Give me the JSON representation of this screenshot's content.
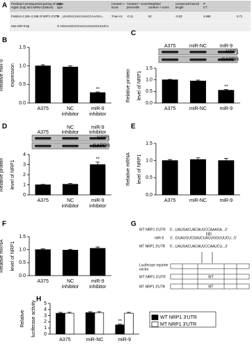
{
  "panel_a": {
    "label": "A",
    "header": [
      [
        "Predicted consequential pairing of target",
        "region (top) and miRNA (bottom)"
      ],
      [
        "Site",
        "type"
      ],
      [
        "Context++",
        "score"
      ],
      [
        "Context++ score",
        "percentile"
      ],
      [
        "Weighted",
        "context++ score"
      ],
      [
        "Conserved branch",
        "length"
      ],
      [
        "P",
        "CT"
      ]
    ],
    "rows": [
      [
        "Position 2,345–2,348 of NRP1 3'UTR",
        "5' ...UAUGACUACAUUCCAAAGA...",
        "7mer-A1",
        "-0.11",
        "92",
        "-0.02",
        "4.688",
        "0.71"
      ],
      [
        "Hsa-miR-9-5p",
        "3' AGUAUGUCGAUCUAUUGGUUUCU"
      ]
    ]
  },
  "chart_data": [
    {
      "panel": "B",
      "type": "bar",
      "ylabel": [
        "Relative miR-9",
        "expression"
      ],
      "categories": [
        [
          "A375"
        ],
        [
          "NC",
          "inhibitor"
        ],
        [
          "miR-9",
          "inhibitor"
        ]
      ],
      "values": [
        1.0,
        0.97,
        0.28
      ],
      "errors": [
        0.03,
        0.03,
        0.02
      ],
      "significance": [
        null,
        null,
        "**"
      ],
      "color": "#000000",
      "ylim": [
        0,
        1.5
      ],
      "yticks": [
        {
          "value": 0,
          "label": "0.0"
        },
        {
          "value": 0.5,
          "label": "0.5"
        },
        {
          "value": 1,
          "label": "1.0"
        },
        {
          "value": 1.5,
          "label": "1.5"
        }
      ]
    },
    {
      "panel": "C",
      "type": "bar",
      "ylabel": [
        "Relative protein",
        "level of NRP1"
      ],
      "categories": [
        [
          "A375"
        ],
        [
          "miR-NC"
        ],
        [
          "miR-9"
        ]
      ],
      "values": [
        1.0,
        0.95,
        0.55
      ],
      "errors": [
        0.02,
        0.04,
        0.03
      ],
      "significance": [
        null,
        null,
        "**"
      ],
      "color": "#000000",
      "blot": {
        "lanes": [
          [
            "A375"
          ],
          [
            "miR-NC"
          ],
          [
            "miR-9"
          ]
        ],
        "rows": [
          "NRP1",
          "GAPDH"
        ]
      },
      "ylim": [
        0,
        1.5
      ],
      "yticks": [
        {
          "value": 0,
          "label": "0.0"
        },
        {
          "value": 0.5,
          "label": "0.5"
        },
        {
          "value": 1,
          "label": "1.0"
        },
        {
          "value": 1.5,
          "label": "1.5"
        }
      ]
    },
    {
      "panel": "D",
      "type": "bar",
      "ylabel": [
        "Relative protein",
        "level of NRP1"
      ],
      "categories": [
        [
          "A375"
        ],
        [
          "NC",
          "inhibitor"
        ],
        [
          "miR-9",
          "inhibitor"
        ]
      ],
      "values": [
        1.0,
        1.05,
        3.0
      ],
      "errors": [
        0.04,
        0.08,
        0.25
      ],
      "significance": [
        null,
        null,
        "**"
      ],
      "color": "#000000",
      "blot": {
        "lanes": [
          [
            "A375"
          ],
          [
            "NC",
            "inhibitor"
          ],
          [
            "miR-9",
            "inhibitor"
          ]
        ],
        "rows": [
          "NRP1",
          "GAPDH"
        ]
      },
      "ylim": [
        0,
        4
      ],
      "yticks": [
        0,
        1,
        2,
        3,
        4
      ]
    },
    {
      "panel": "E",
      "type": "bar",
      "ylabel": [
        "Relative mRNA",
        "level of NRP1"
      ],
      "categories": [
        [
          "A375"
        ],
        [
          "miR-NC"
        ],
        [
          "miR-9"
        ]
      ],
      "values": [
        1.0,
        1.03,
        1.0
      ],
      "errors": [
        0.03,
        0.05,
        0.06
      ],
      "significance": [
        null,
        null,
        null
      ],
      "color": "#000000",
      "ylim": [
        0,
        1.5
      ],
      "yticks": [
        {
          "value": 0,
          "label": "0.0"
        },
        {
          "value": 0.5,
          "label": "0.5"
        },
        {
          "value": 1,
          "label": "1.0"
        },
        {
          "value": 1.5,
          "label": "1.5"
        }
      ]
    },
    {
      "panel": "F",
      "type": "bar",
      "ylabel": [
        "Relative mRNA",
        "level of NRP1"
      ],
      "categories": [
        [
          "A375"
        ],
        [
          "NC",
          "inhibitor"
        ],
        [
          "miR-9",
          "inhibitor"
        ]
      ],
      "values": [
        1.0,
        0.98,
        1.05
      ],
      "errors": [
        0.03,
        0.03,
        0.05
      ],
      "significance": [
        null,
        null,
        null
      ],
      "color": "#000000",
      "ylim": [
        0,
        1.5
      ],
      "yticks": [
        {
          "value": 0,
          "label": "0.0"
        },
        {
          "value": 0.5,
          "label": "0.5"
        },
        {
          "value": 1,
          "label": "1.0"
        },
        {
          "value": 1.5,
          "label": "1.5"
        }
      ]
    },
    {
      "panel": "H",
      "type": "grouped_bar",
      "ylabel": [
        "Relative",
        "luciferase activity"
      ],
      "categories": [
        [
          "A375"
        ],
        [
          "miR-NC"
        ],
        [
          "miR-9"
        ]
      ],
      "series": [
        {
          "name": "WT NRP1 3'UTR",
          "color": "#000000",
          "values": [
            3.4,
            3.5,
            1.5
          ],
          "errors": [
            0.15,
            0.15,
            0.12
          ],
          "significance": [
            null,
            null,
            "**"
          ]
        },
        {
          "name": "MT NRP1 3'UTR",
          "color": "#ffffff",
          "values": [
            3.4,
            3.5,
            3.4
          ],
          "errors": [
            0.15,
            0.15,
            0.15
          ],
          "significance": [
            null,
            null,
            null
          ]
        }
      ],
      "legend": "right",
      "ylim": [
        0,
        5
      ],
      "yticks": [
        0,
        1,
        2,
        3,
        4,
        5
      ]
    }
  ],
  "panel_g": {
    "label": "G",
    "wt_name": "WT NRP1 3'UTR",
    "wt_seq": "5'...UAUGACUACAUUCCAAAGA...3'",
    "pairing": "||||||",
    "mir_name": "miR-9",
    "mir_seq": "3'...GUAUGUCGAUCUAUUGGUUUCU...5'",
    "mt_name": "MT NRP1 3'UTR",
    "mt_seq": "5'...UAUGACUACAUUCCAAUCU...3'",
    "vector": [
      "Luciferase reporter",
      "vector"
    ],
    "wt_row": "WT NRP1 3'UTR",
    "mt_row": "MT NRP1 3'UTR",
    "wt_box": "WT",
    "mt_box": "MT"
  }
}
